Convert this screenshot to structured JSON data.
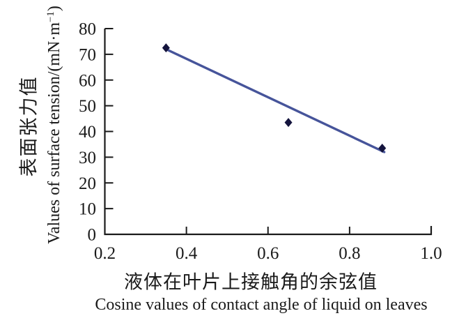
{
  "chart_data": {
    "type": "scatter",
    "title": "",
    "xlabel_zh": "液体在叶片上接触角的余弦值",
    "xlabel_en": "Cosine values of contact angle of liquid on leaves",
    "ylabel_zh": "表面张力值",
    "ylabel_en": "Values of surface tension/(mN·m⁻¹)",
    "ylabel_en_pre": "Values of surface tension/(mN·m",
    "ylabel_en_sup": "−1",
    "ylabel_en_post": ")",
    "points": [
      {
        "x": 0.35,
        "y": 72.5
      },
      {
        "x": 0.65,
        "y": 43.5
      },
      {
        "x": 0.88,
        "y": 33.5
      }
    ],
    "trend_line": {
      "x1": 0.35,
      "y1": 72,
      "x2": 0.885,
      "y2": 32
    },
    "xlim": [
      0.2,
      1.0
    ],
    "ylim": [
      0,
      80
    ],
    "xticks": [
      0.2,
      0.4,
      0.6,
      0.8,
      1.0
    ],
    "xtick_labels": [
      "0.2",
      "0.4",
      "0.6",
      "0.8",
      "1.0"
    ],
    "yticks": [
      0,
      10,
      20,
      30,
      40,
      50,
      60,
      70,
      80
    ],
    "ytick_labels": [
      "0",
      "10",
      "20",
      "30",
      "40",
      "50",
      "60",
      "70",
      "80"
    ],
    "grid": false,
    "legend": null,
    "marker": "diamond",
    "marker_color": "#14143d",
    "line_color": "#46549a",
    "axis_color": "#1a1a1a",
    "background_color": "#ffffff"
  }
}
